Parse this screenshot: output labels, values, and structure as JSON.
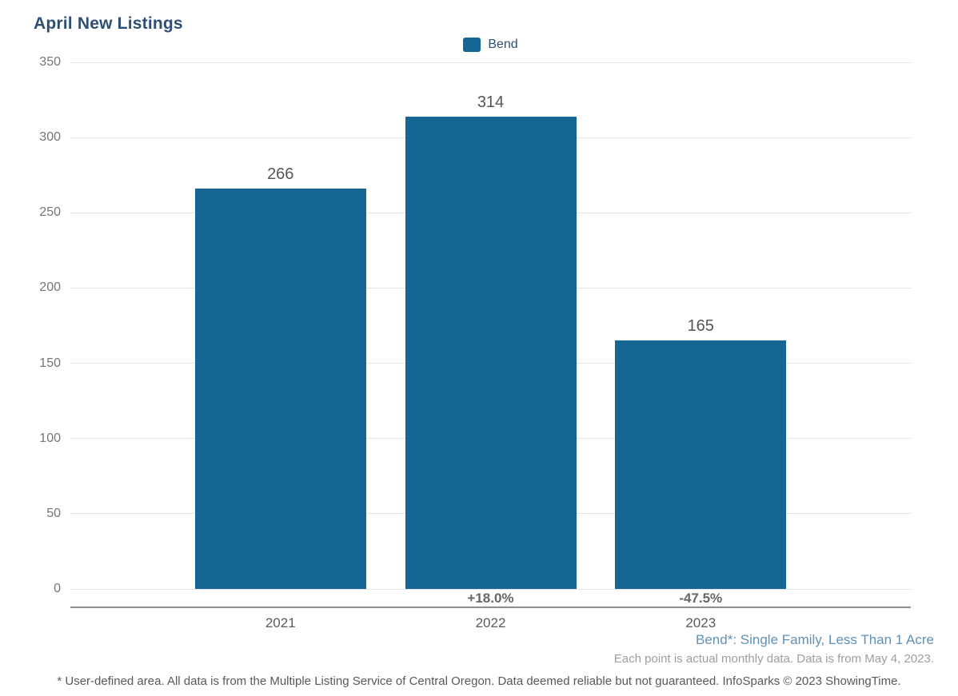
{
  "title": "April New Listings",
  "legend": {
    "items": [
      {
        "label": "Bend",
        "color": "#156595"
      }
    ]
  },
  "chart_data": {
    "type": "bar",
    "title": "April New Listings",
    "categories": [
      "2021",
      "2022",
      "2023"
    ],
    "series": [
      {
        "name": "Bend",
        "values": [
          266,
          314,
          165
        ]
      }
    ],
    "value_labels": [
      "266",
      "314",
      "165"
    ],
    "pct_change_labels": [
      "",
      "+18.0%",
      "-47.5%"
    ],
    "xlabel": "",
    "ylabel": "",
    "ylim": [
      0,
      350
    ],
    "yticks": [
      0,
      50,
      100,
      150,
      200,
      250,
      300,
      350
    ],
    "grid": "horizontal",
    "legend_position": "top-center",
    "bar_color": "#156595"
  },
  "footnotes": {
    "series_definition": "Bend*: Single Family, Less Than 1 Acre",
    "data_note": "Each point is actual monthly data. Data is from May 4, 2023.",
    "disclaimer": "* User-defined area. All data is from the Multiple Listing Service of Central Oregon. Data deemed reliable but not guaranteed. InfoSparks © 2023 ShowingTime."
  },
  "colors": {
    "bar": "#156595",
    "title": "#2e4e74",
    "legend_label": "#2e4e74",
    "series_note": "#6191b6",
    "data_note": "#9e9e9e",
    "disclaimer": "#595959",
    "axis_line": "#8c8c8c",
    "gridline": "#e4e4e4",
    "tick_label": "#757575",
    "value_label": "#565656",
    "pct_label": "#666666",
    "year_label": "#5a5a5a"
  }
}
